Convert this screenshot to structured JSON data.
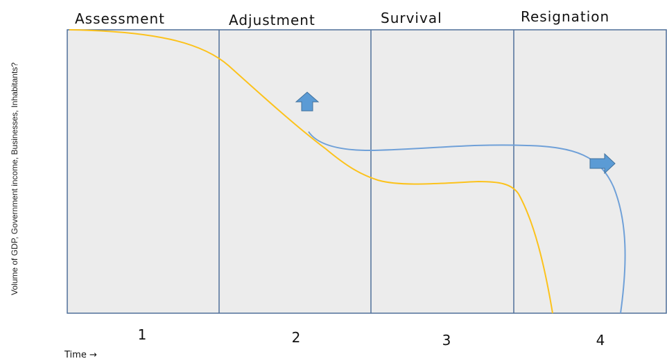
{
  "y_axis_label": "Volume of GDP, Government income, Businesses, Inhabitants?",
  "x_axis_label": "Time →",
  "phases": [
    {
      "name": "Assessment",
      "number": "1"
    },
    {
      "name": "Adjustment",
      "number": "2"
    },
    {
      "name": "Survival",
      "number": "3"
    },
    {
      "name": "Resignation",
      "number": "4"
    }
  ]
}
